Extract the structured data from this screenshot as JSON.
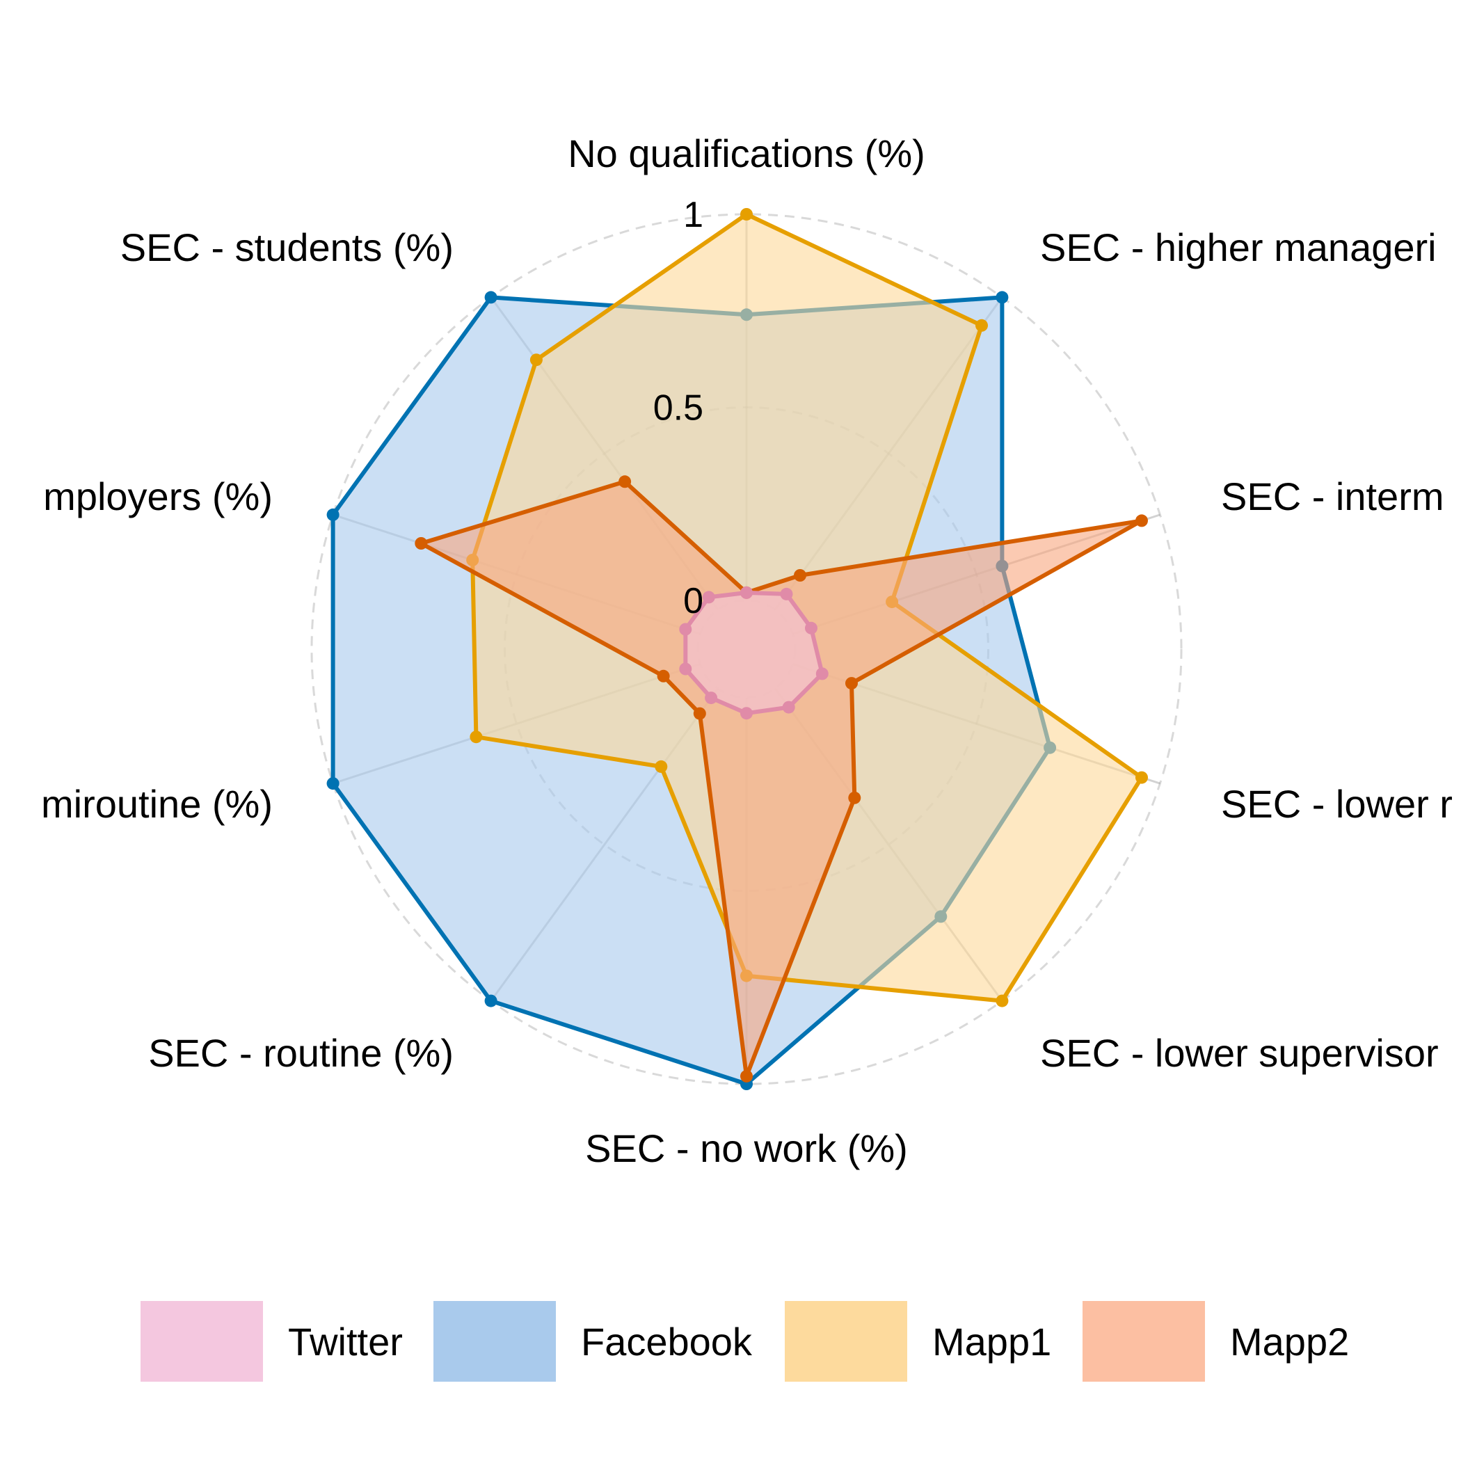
{
  "chart_data": {
    "type": "radar",
    "axes": [
      "No qualifications (%)",
      "SEC - higher manageri",
      "SEC - interm",
      "SEC - lower r",
      "SEC - lower supervisor",
      "SEC - no work (%)",
      "SEC - routine (%)",
      "miroutine (%)",
      "mployers (%)",
      "SEC - students (%)"
    ],
    "ticks": [
      {
        "value": 0,
        "label": "0"
      },
      {
        "value": 0.5,
        "label": "0.5"
      },
      {
        "value": 1,
        "label": "1"
      }
    ],
    "range": [
      0,
      1
    ],
    "grid": true,
    "legend_position": "bottom",
    "series": [
      {
        "name": "Facebook",
        "color": "#0072B2",
        "fill": "#A8CAEC",
        "values": [
          0.74,
          1.0,
          0.57,
          0.7,
          0.73,
          1.0,
          1.0,
          1.0,
          1.0,
          1.0
        ]
      },
      {
        "name": "Mapp1",
        "color": "#E69F00",
        "fill": "#FDD99A",
        "values": [
          1.0,
          0.91,
          0.27,
          0.95,
          1.0,
          0.72,
          0.25,
          0.61,
          0.62,
          0.8
        ]
      },
      {
        "name": "Mapp2",
        "color": "#D55E00",
        "fill": "#F8A77E",
        "values": [
          0.02,
          0.11,
          0.95,
          0.16,
          0.35,
          0.98,
          0.08,
          0.1,
          0.76,
          0.41
        ]
      },
      {
        "name": "Twitter",
        "color": "#E08BA8",
        "fill": "#F4C3DA",
        "values": [
          0.02,
          0.05,
          0.05,
          0.08,
          0.06,
          0.04,
          0.03,
          0.04,
          0.04,
          0.04
        ]
      }
    ]
  },
  "legend": [
    {
      "label": "Twitter",
      "color": "#F4C7DF"
    },
    {
      "label": "Facebook",
      "color": "#A9CAEC"
    },
    {
      "label": "Mapp1",
      "color": "#FDDA9D"
    },
    {
      "label": "Mapp2",
      "color": "#FCBFA2"
    }
  ]
}
